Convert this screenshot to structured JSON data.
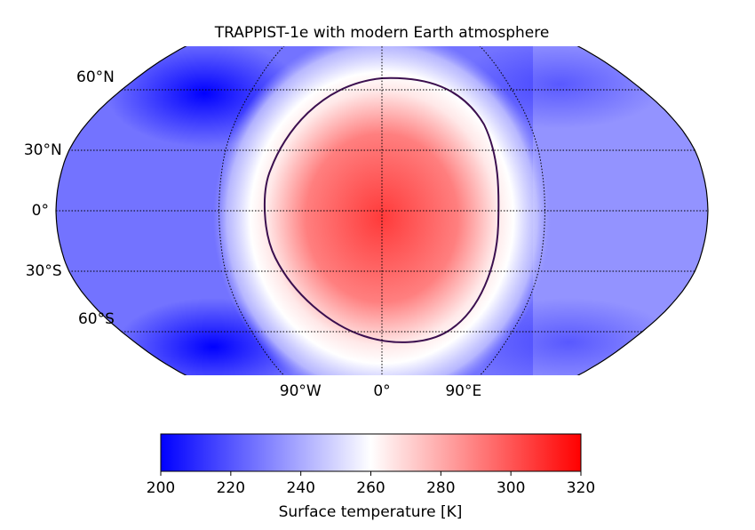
{
  "title": "TRAPPIST-1e with modern Earth atmosphere",
  "map": {
    "latitude_labels": [
      "60°N",
      "30°N",
      "0°",
      "30°S",
      "60°S"
    ],
    "longitude_labels": [
      "90°W",
      "0°",
      "90°E"
    ]
  },
  "colorbar": {
    "label": "Surface temperature [K]",
    "lim": [
      200,
      320
    ],
    "ticks": [
      200,
      220,
      240,
      260,
      280,
      300,
      320
    ],
    "colors": [
      "#0000ff",
      "#ffffff",
      "#ff0000"
    ]
  }
}
